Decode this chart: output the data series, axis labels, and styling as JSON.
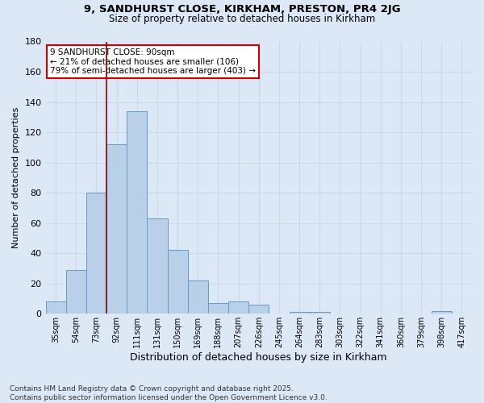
{
  "title1": "9, SANDHURST CLOSE, KIRKHAM, PRESTON, PR4 2JG",
  "title2": "Size of property relative to detached houses in Kirkham",
  "xlabel": "Distribution of detached houses by size in Kirkham",
  "ylabel": "Number of detached properties",
  "categories": [
    "35sqm",
    "54sqm",
    "73sqm",
    "92sqm",
    "111sqm",
    "131sqm",
    "150sqm",
    "169sqm",
    "188sqm",
    "207sqm",
    "226sqm",
    "245sqm",
    "264sqm",
    "283sqm",
    "303sqm",
    "322sqm",
    "341sqm",
    "360sqm",
    "379sqm",
    "398sqm",
    "417sqm"
  ],
  "values": [
    8,
    29,
    80,
    112,
    134,
    63,
    42,
    22,
    7,
    8,
    6,
    0,
    1,
    1,
    0,
    0,
    0,
    0,
    0,
    2,
    0
  ],
  "bar_color": "#b8d0e8",
  "bar_edge_color": "#6699cc",
  "background_color": "#dce8f5",
  "grid_color": "#c8d8ea",
  "vline_x_index": 3,
  "vline_color": "#8b0000",
  "annotation_text": "9 SANDHURST CLOSE: 90sqm\n← 21% of detached houses are smaller (106)\n79% of semi-detached houses are larger (403) →",
  "annotation_box_color": "#ffffff",
  "annotation_box_edge": "#cc0000",
  "footnote": "Contains HM Land Registry data © Crown copyright and database right 2025.\nContains public sector information licensed under the Open Government Licence v3.0.",
  "ylim": [
    0,
    180
  ],
  "yticks": [
    0,
    20,
    40,
    60,
    80,
    100,
    120,
    140,
    160,
    180
  ]
}
